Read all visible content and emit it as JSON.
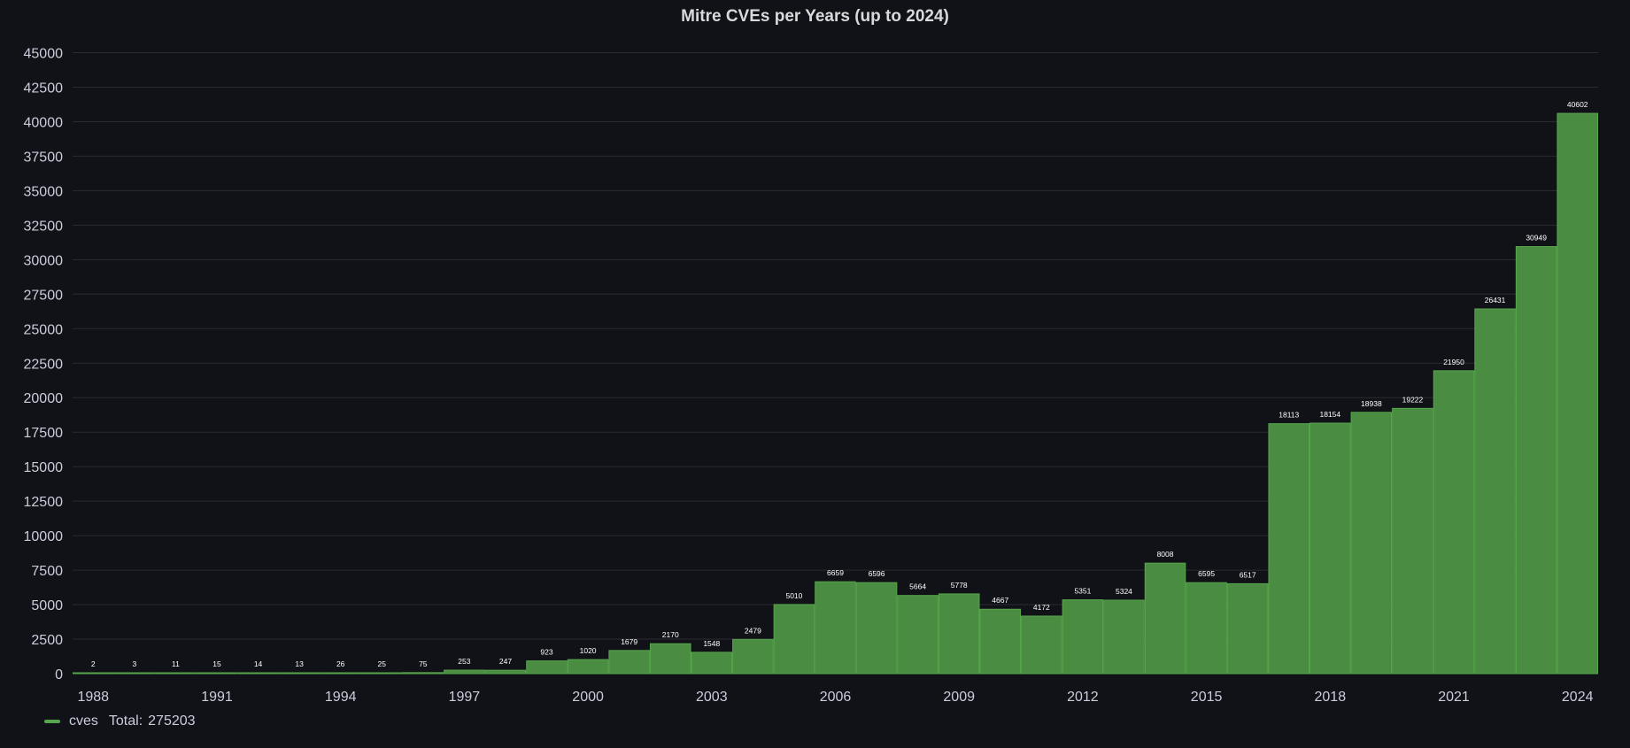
{
  "colors": {
    "bar": "#56a64b",
    "bar_fill": "#4b8c43",
    "grid": "#2a2b31",
    "axis_text": "#ccccdc",
    "label_text": "#ffffff",
    "background": "#111217"
  },
  "chart_data": {
    "type": "bar",
    "title": "Mitre CVEs per Years (up to 2024)",
    "xlabel": "",
    "ylabel": "",
    "ylim": [
      0,
      45000
    ],
    "yticks": [
      0,
      2500,
      5000,
      7500,
      10000,
      12500,
      15000,
      17500,
      20000,
      22500,
      25000,
      27500,
      30000,
      32500,
      35000,
      37500,
      40000,
      42500,
      45000
    ],
    "categories": [
      "1988",
      "1989",
      "1990",
      "1991",
      "1992",
      "1993",
      "1994",
      "1995",
      "1996",
      "1997",
      "1998",
      "1999",
      "2000",
      "2001",
      "2002",
      "2003",
      "2004",
      "2005",
      "2006",
      "2007",
      "2008",
      "2009",
      "2010",
      "2011",
      "2012",
      "2013",
      "2014",
      "2015",
      "2016",
      "2017",
      "2018",
      "2019",
      "2020",
      "2021",
      "2022",
      "2023",
      "2024"
    ],
    "x_tick_labels": [
      "1988",
      "1991",
      "1994",
      "1997",
      "2000",
      "2003",
      "2006",
      "2009",
      "2012",
      "2015",
      "2018",
      "2021",
      "2024"
    ],
    "series": [
      {
        "name": "cves",
        "values": [
          2,
          3,
          11,
          15,
          14,
          13,
          26,
          25,
          75,
          253,
          247,
          923,
          1020,
          1679,
          2170,
          1548,
          2479,
          5010,
          6659,
          6596,
          5664,
          5778,
          4667,
          4172,
          5351,
          5324,
          8008,
          6595,
          6517,
          18113,
          18154,
          18938,
          19222,
          21950,
          26431,
          30949,
          40602
        ]
      }
    ],
    "grid": true,
    "legend": {
      "position": "bottom-left",
      "total_label": "Total:",
      "total_value": "275203"
    }
  }
}
